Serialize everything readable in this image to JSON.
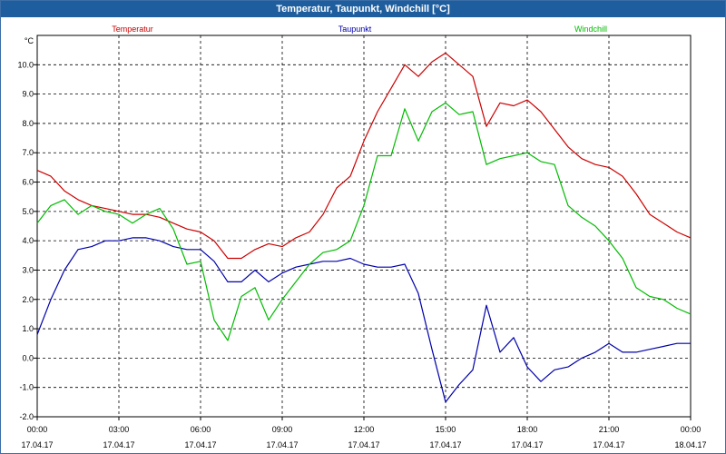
{
  "window": {
    "title": "Temperatur, Taupunkt, Windchill [°C]"
  },
  "chart_data": {
    "type": "line",
    "title": "Temperatur, Taupunkt, Windchill [°C]",
    "y_unit": "°C",
    "ylim": [
      -2.0,
      11.0
    ],
    "y_ticks": [
      "10.0",
      "9.0",
      "8.0",
      "7.0",
      "6.0",
      "5.0",
      "4.0",
      "3.0",
      "2.0",
      "1.0",
      "0.0",
      "-1.0",
      "-2.0"
    ],
    "x_range_hours": [
      0,
      24
    ],
    "x_ticks": [
      {
        "time": "00:00",
        "date": "17.04.17"
      },
      {
        "time": "03:00",
        "date": "17.04.17"
      },
      {
        "time": "06:00",
        "date": "17.04.17"
      },
      {
        "time": "09:00",
        "date": "17.04.17"
      },
      {
        "time": "12:00",
        "date": "17.04.17"
      },
      {
        "time": "15:00",
        "date": "17.04.17"
      },
      {
        "time": "18:00",
        "date": "17.04.17"
      },
      {
        "time": "21:00",
        "date": "17.04.17"
      },
      {
        "time": "00:00",
        "date": "18.04.17"
      }
    ],
    "grid": true,
    "legend_position": "top",
    "series": [
      {
        "name": "Temperatur",
        "color": "#cc0000",
        "x": [
          0,
          0.5,
          1,
          1.5,
          2,
          2.5,
          3,
          3.5,
          4,
          4.5,
          5,
          5.5,
          6,
          6.5,
          7,
          7.5,
          8,
          8.5,
          9,
          9.5,
          10,
          10.5,
          11,
          11.5,
          12,
          12.5,
          13,
          13.5,
          14,
          14.5,
          15,
          15.5,
          16,
          16.5,
          17,
          17.5,
          18,
          18.5,
          19,
          19.5,
          20,
          20.5,
          21,
          21.5,
          22,
          22.5,
          23,
          23.5,
          24
        ],
        "values": [
          6.4,
          6.2,
          5.7,
          5.4,
          5.2,
          5.1,
          5.0,
          4.9,
          4.9,
          4.8,
          4.6,
          4.4,
          4.3,
          4.0,
          3.4,
          3.4,
          3.7,
          3.9,
          3.8,
          4.1,
          4.3,
          4.9,
          5.8,
          6.2,
          7.4,
          8.4,
          9.2,
          10.0,
          9.6,
          10.1,
          10.4,
          10.0,
          9.6,
          7.9,
          8.7,
          8.6,
          8.8,
          8.4,
          7.8,
          7.2,
          6.8,
          6.6,
          6.5,
          6.2,
          5.6,
          4.9,
          4.6,
          4.3,
          4.1
        ]
      },
      {
        "name": "Taupunkt",
        "color": "#0000aa",
        "x": [
          0,
          0.5,
          1,
          1.5,
          2,
          2.5,
          3,
          3.5,
          4,
          4.5,
          5,
          5.5,
          6,
          6.5,
          7,
          7.5,
          8,
          8.5,
          9,
          9.5,
          10,
          10.5,
          11,
          11.5,
          12,
          12.5,
          13,
          13.5,
          14,
          14.5,
          15,
          15.5,
          16,
          16.5,
          17,
          17.5,
          18,
          18.5,
          19,
          19.5,
          20,
          20.5,
          21,
          21.5,
          22,
          22.5,
          23,
          23.5,
          24
        ],
        "values": [
          0.8,
          2.0,
          3.0,
          3.7,
          3.8,
          4.0,
          4.0,
          4.1,
          4.1,
          4.0,
          3.8,
          3.7,
          3.7,
          3.3,
          2.6,
          2.6,
          3.0,
          2.6,
          2.9,
          3.1,
          3.2,
          3.3,
          3.3,
          3.4,
          3.2,
          3.1,
          3.1,
          3.2,
          2.2,
          0.3,
          -1.5,
          -0.9,
          -0.4,
          1.8,
          0.2,
          0.7,
          -0.3,
          -0.8,
          -0.4,
          -0.3,
          0.0,
          0.2,
          0.5,
          0.2,
          0.2,
          0.3,
          0.4,
          0.5,
          0.5
        ]
      },
      {
        "name": "Windchill",
        "color": "#00bb00",
        "x": [
          0,
          0.5,
          1,
          1.5,
          2,
          2.5,
          3,
          3.5,
          4,
          4.5,
          5,
          5.5,
          6,
          6.5,
          7,
          7.5,
          8,
          8.5,
          9,
          9.5,
          10,
          10.5,
          11,
          11.5,
          12,
          12.5,
          13,
          13.5,
          14,
          14.5,
          15,
          15.5,
          16,
          16.5,
          17,
          17.5,
          18,
          18.5,
          19,
          19.5,
          20,
          20.5,
          21,
          21.5,
          22,
          22.5,
          23,
          23.5,
          24
        ],
        "values": [
          4.6,
          5.2,
          5.4,
          4.9,
          5.2,
          5.0,
          4.9,
          4.6,
          4.9,
          5.1,
          4.4,
          3.2,
          3.3,
          1.3,
          0.6,
          2.1,
          2.4,
          1.3,
          2.0,
          2.6,
          3.2,
          3.6,
          3.7,
          4.0,
          5.2,
          6.9,
          6.9,
          8.5,
          7.4,
          8.4,
          8.7,
          8.3,
          8.4,
          6.6,
          6.8,
          6.9,
          7.0,
          6.7,
          6.6,
          5.2,
          4.8,
          4.5,
          4.0,
          3.4,
          2.4,
          2.1,
          2.0,
          1.7,
          1.5
        ]
      }
    ]
  }
}
